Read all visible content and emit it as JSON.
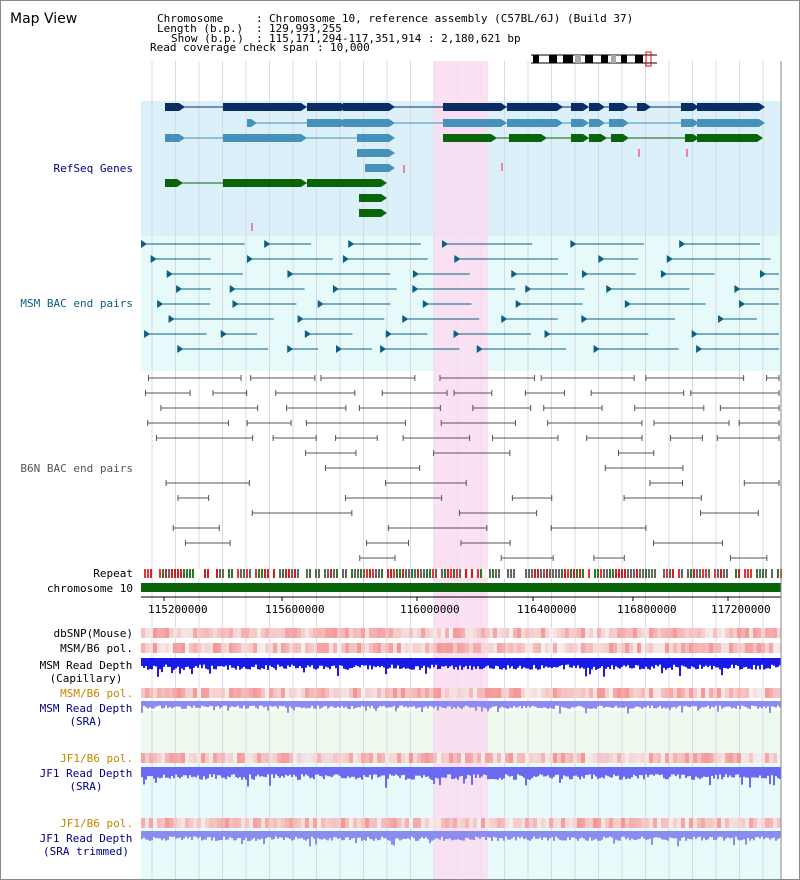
{
  "title": "Map View",
  "header": {
    "chromosome_label": "Chromosome",
    "chromosome_value": "Chromosome 10, reference assembly (C57BL/6J) (Build 37)",
    "length_label": "Length (b.p.)",
    "length_value": "129,993,255",
    "show_label": "Show (b.p.)",
    "show_value": "115,171,294-117,351,914 : 2,180,621 bp",
    "coverage_label": "Read coverage check span",
    "coverage_value": "10,000"
  },
  "tracks": {
    "refseq": "RefSeq Genes",
    "msm_bac": "MSM BAC end pairs",
    "b6n_bac": "B6N BAC end pairs",
    "repeat": "Repeat",
    "chromosome": "chromosome 10",
    "dbsnp": "dbSNP(Mouse)",
    "msm_b6_pol_1": "MSM/B6 pol.",
    "msm_depth_cap_1": "MSM Read Depth",
    "msm_depth_cap_2": "(Capillary)",
    "msm_b6_pol_2": "MSM/B6 pol.",
    "msm_depth_sra_1": "MSM Read Depth",
    "msm_depth_sra_2": "(SRA)",
    "jf1_b6_pol_1": "JF1/B6 pol.",
    "jf1_depth_sra_1": "JF1 Read Depth",
    "jf1_depth_sra_2": "(SRA)",
    "jf1_b6_pol_2": "JF1/B6 pol.",
    "jf1_depth_trim_1": "JF1 Read Depth",
    "jf1_depth_trim_2": "(SRA trimmed)"
  },
  "axis": {
    "ticks": [
      "115200000",
      "115600000",
      "116000000",
      "116400000",
      "116800000",
      "117200000"
    ]
  },
  "colors": {
    "refseq_bg": "#dcf0fa",
    "msm_bg": "#e6fafa",
    "highlight": "#fadcf0",
    "gene_navy": "#0a2d64",
    "gene_steel": "#4691b9",
    "gene_green": "#0a640a",
    "msm_line": "#0a5f82",
    "b6n_line": "#555555",
    "chrom_green": "#0a640a",
    "label_navy": "#000080",
    "label_orange": "#c88200"
  }
}
